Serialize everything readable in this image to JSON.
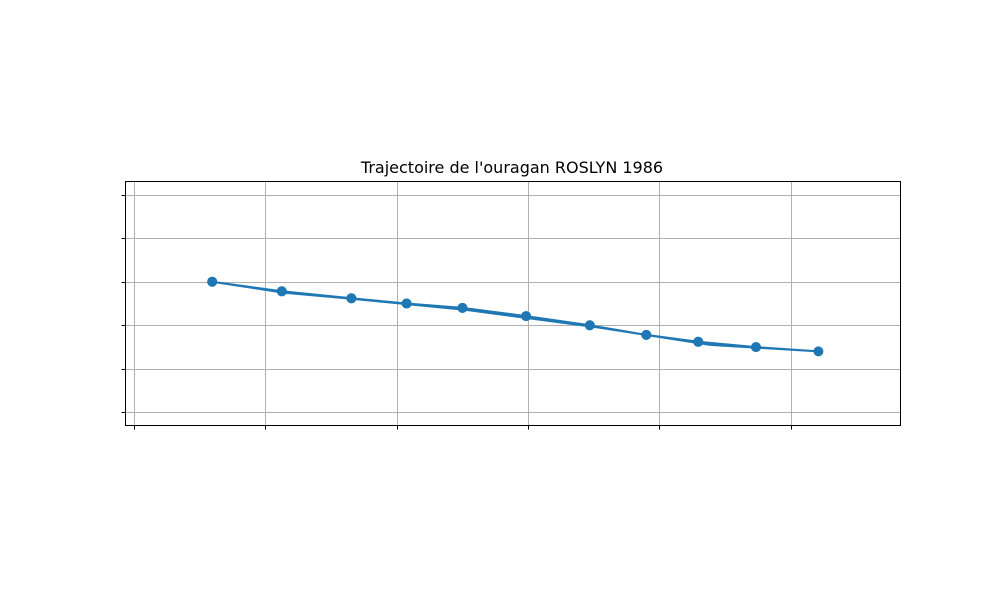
{
  "chart_data": {
    "type": "line",
    "title": "Trajectoire de l'ouragan ROSLYN 1986",
    "xlabel": "",
    "ylabel": "",
    "xlim": [
      -0.6,
      11.2
    ],
    "ylim": [
      -1.8,
      3.8
    ],
    "xgrid": [
      -0.47,
      1.53,
      3.53,
      5.53,
      7.53,
      9.53
    ],
    "ygrid": [
      -1.5,
      -0.5,
      0.5,
      1.5,
      2.5,
      3.5
    ],
    "grid": true,
    "legend": "none",
    "series": [
      {
        "color": "#1f77b4",
        "marker": "circle",
        "points": [
          [
            0.72,
            1.5
          ],
          [
            1.78,
            1.28
          ],
          [
            2.84,
            1.12
          ],
          [
            3.68,
            1.0
          ],
          [
            4.53,
            0.9
          ],
          [
            5.5,
            0.71
          ],
          [
            6.47,
            0.5
          ],
          [
            7.33,
            0.28
          ],
          [
            8.12,
            0.12
          ],
          [
            9.0,
            0.0
          ],
          [
            9.95,
            -0.1
          ],
          [
            9.0,
            0.0
          ],
          [
            8.12,
            0.12
          ],
          [
            7.33,
            0.28
          ],
          [
            6.47,
            0.5
          ],
          [
            5.5,
            0.71
          ],
          [
            4.53,
            0.9
          ],
          [
            3.68,
            1.0
          ],
          [
            2.84,
            1.12
          ],
          [
            1.78,
            1.28
          ],
          [
            0.72,
            1.5
          ]
        ],
        "path": [
          [
            0.72,
            1.5
          ],
          [
            1.78,
            1.28
          ],
          [
            2.84,
            1.12
          ],
          [
            3.68,
            1.0
          ],
          [
            4.53,
            0.9
          ],
          [
            5.5,
            0.71
          ],
          [
            6.47,
            0.5
          ],
          [
            7.33,
            0.28
          ],
          [
            8.12,
            0.12
          ],
          [
            9.0,
            0.0
          ],
          [
            9.95,
            -0.1
          ],
          [
            8.3,
            0.05
          ],
          [
            6.6,
            0.45
          ],
          [
            4.6,
            0.85
          ],
          [
            2.9,
            1.1
          ],
          [
            1.8,
            1.25
          ],
          [
            0.72,
            1.5
          ]
        ]
      }
    ]
  }
}
